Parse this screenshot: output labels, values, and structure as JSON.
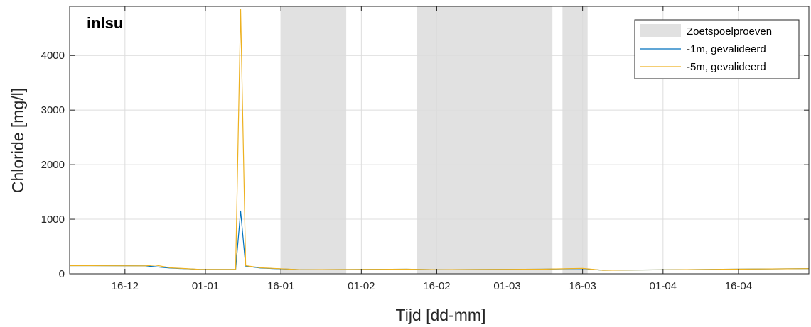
{
  "chart_data": {
    "type": "line",
    "title": "inlsu",
    "xlabel": "Tijd [dd-mm]",
    "ylabel": "Chloride [mg/l]",
    "x_ticks": [
      {
        "date": "12-16",
        "label": "16-12"
      },
      {
        "date": "01-01",
        "label": "01-01"
      },
      {
        "date": "01-16",
        "label": "16-01"
      },
      {
        "date": "02-01",
        "label": "01-02"
      },
      {
        "date": "02-16",
        "label": "16-02"
      },
      {
        "date": "03-01",
        "label": "01-03"
      },
      {
        "date": "03-16",
        "label": "16-03"
      },
      {
        "date": "04-01",
        "label": "01-04"
      },
      {
        "date": "04-16",
        "label": "16-04"
      }
    ],
    "xlim": [
      "12-05",
      "04-30"
    ],
    "ylim": [
      0,
      4900
    ],
    "y_ticks": [
      0,
      1000,
      2000,
      3000,
      4000
    ],
    "grid": true,
    "legend_position": "top-right",
    "shaded_regions": {
      "name": "Zoetspoelproeven",
      "color": "#e1e1e1",
      "intervals": [
        [
          "01-16",
          "01-29"
        ],
        [
          "02-12",
          "03-10"
        ],
        [
          "03-12",
          "03-17"
        ]
      ]
    },
    "series": [
      {
        "name": "-1m, gevalideerd",
        "color": "#0072bd",
        "points": [
          [
            "12-05",
            150
          ],
          [
            "12-20",
            145
          ],
          [
            "12-25",
            105
          ],
          [
            "12-31",
            80
          ],
          [
            "01-07",
            80
          ],
          [
            "01-08",
            1150
          ],
          [
            "01-09",
            140
          ],
          [
            "01-12",
            105
          ],
          [
            "01-20",
            75
          ],
          [
            "02-10",
            85
          ],
          [
            "02-16",
            75
          ],
          [
            "03-08",
            85
          ],
          [
            "03-16",
            95
          ],
          [
            "03-20",
            65
          ],
          [
            "04-10",
            80
          ],
          [
            "04-30",
            95
          ]
        ]
      },
      {
        "name": "-5m, gevalideerd",
        "color": "#edb120",
        "points": [
          [
            "12-05",
            150
          ],
          [
            "12-20",
            145
          ],
          [
            "12-22",
            160
          ],
          [
            "12-25",
            110
          ],
          [
            "12-31",
            80
          ],
          [
            "01-07",
            80
          ],
          [
            "01-08",
            4850
          ],
          [
            "01-09",
            150
          ],
          [
            "01-12",
            110
          ],
          [
            "01-20",
            75
          ],
          [
            "02-10",
            85
          ],
          [
            "02-16",
            75
          ],
          [
            "03-08",
            85
          ],
          [
            "03-16",
            100
          ],
          [
            "03-20",
            65
          ],
          [
            "04-10",
            80
          ],
          [
            "04-30",
            95
          ]
        ]
      }
    ]
  },
  "colors": {
    "axis": "#262626",
    "grid": "#dcdcdc",
    "shade": "#e1e1e1"
  }
}
